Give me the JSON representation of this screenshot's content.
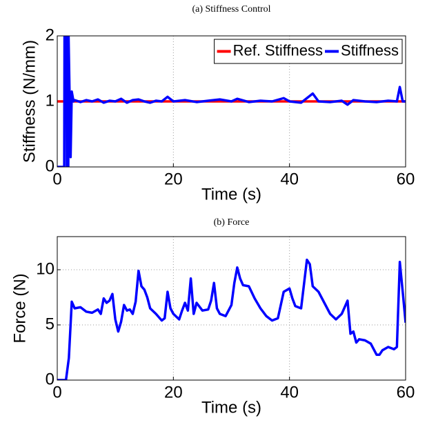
{
  "chart_data": [
    {
      "type": "line",
      "title": "(a) Stiffness Control",
      "xlabel": "Time (s)",
      "ylabel": "Stiffness (N/mm)",
      "xlim": [
        0,
        60
      ],
      "ylim": [
        0,
        2
      ],
      "xticks": [
        0,
        20,
        40,
        60
      ],
      "yticks": [
        0,
        1,
        2
      ],
      "grid": true,
      "legend": "upper right",
      "series": [
        {
          "name": "Ref. Stiffness",
          "color": "#ff0000",
          "x": [
            0,
            60
          ],
          "values": [
            1,
            1
          ]
        },
        {
          "name": "Stiffness",
          "color": "#0000ff",
          "x": [
            0,
            1.2,
            1.25,
            1.6,
            1.65,
            1.9,
            1.95,
            2.3,
            2.5,
            2.8,
            3,
            4,
            5,
            6,
            7,
            8,
            9,
            10,
            11,
            12,
            13,
            14,
            15,
            16,
            17,
            18,
            19,
            20,
            22,
            24,
            26,
            28,
            30,
            31,
            33,
            35,
            37,
            39,
            40,
            42,
            44,
            45,
            47,
            49,
            50,
            51,
            53,
            55,
            57,
            58.5,
            59,
            59.5,
            60
          ],
          "values": [
            0,
            0,
            2,
            2,
            0,
            0,
            2,
            0.15,
            1.15,
            1.0,
            1.02,
            0.99,
            1.02,
            1.0,
            1.03,
            0.98,
            1.01,
            1.0,
            1.04,
            0.98,
            1.02,
            1.03,
            1.0,
            0.98,
            1.01,
            1.0,
            1.07,
            1.0,
            1.02,
            0.99,
            1.01,
            1.03,
            1.0,
            1.04,
            0.99,
            1.01,
            1.0,
            1.05,
            1.0,
            0.98,
            1.12,
            1.0,
            0.99,
            1.01,
            0.95,
            1.02,
            1.0,
            0.99,
            1.01,
            1.0,
            1.22,
            1.0,
            1.0
          ]
        }
      ]
    },
    {
      "type": "line",
      "title": "(b) Force",
      "xlabel": "Time (s)",
      "ylabel": "Force (N)",
      "xlim": [
        0,
        60
      ],
      "ylim": [
        0,
        13
      ],
      "xticks": [
        0,
        20,
        40,
        60
      ],
      "yticks": [
        0,
        5,
        10
      ],
      "grid": true,
      "series": [
        {
          "color": "#0000ff",
          "x": [
            0,
            1.5,
            2,
            2.5,
            3,
            4,
            5,
            6,
            7,
            7.5,
            8,
            8.5,
            9,
            9.5,
            10,
            10.5,
            11,
            11.5,
            12,
            12.5,
            13,
            13.5,
            14,
            14.5,
            15,
            15.5,
            16,
            17,
            18,
            18.5,
            19,
            19.5,
            20,
            21,
            21.5,
            22,
            22.5,
            23,
            23.5,
            24,
            25,
            26,
            26.5,
            27,
            27.5,
            28,
            29,
            30,
            30.5,
            31,
            31.5,
            32,
            33,
            34,
            35,
            36,
            37,
            38,
            39,
            40,
            40.5,
            41,
            42,
            43,
            43.5,
            44,
            45,
            46,
            47,
            48,
            49,
            50,
            50.5,
            51,
            51.5,
            52,
            53,
            54,
            55,
            55.5,
            56,
            57,
            58,
            58.5,
            59,
            59.5,
            60
          ],
          "values": [
            0,
            0,
            2,
            7.1,
            6.5,
            6.6,
            6.2,
            6.1,
            6.4,
            6.0,
            7.4,
            7.0,
            7.2,
            7.8,
            5.5,
            4.4,
            5.3,
            6.8,
            6.3,
            6.4,
            6.0,
            7.1,
            9.9,
            8.5,
            8.2,
            7.5,
            6.5,
            6.0,
            5.4,
            5.6,
            8.0,
            6.5,
            6.0,
            5.5,
            6.3,
            7.0,
            6.3,
            9.2,
            6.0,
            7.0,
            6.3,
            6.4,
            7.2,
            8.8,
            6.5,
            6.0,
            5.8,
            6.8,
            8.8,
            10.2,
            9.2,
            8.6,
            8.5,
            7.4,
            6.5,
            5.8,
            5.4,
            5.6,
            8.0,
            8.3,
            7.4,
            6.7,
            6.5,
            10.9,
            10.5,
            8.5,
            8.0,
            7.0,
            6.0,
            5.5,
            6.0,
            7.2,
            4.2,
            4.4,
            3.4,
            3.7,
            3.6,
            3.3,
            2.3,
            2.3,
            2.7,
            3.0,
            2.8,
            3.0,
            10.7,
            8.0,
            5.2
          ]
        }
      ]
    }
  ]
}
